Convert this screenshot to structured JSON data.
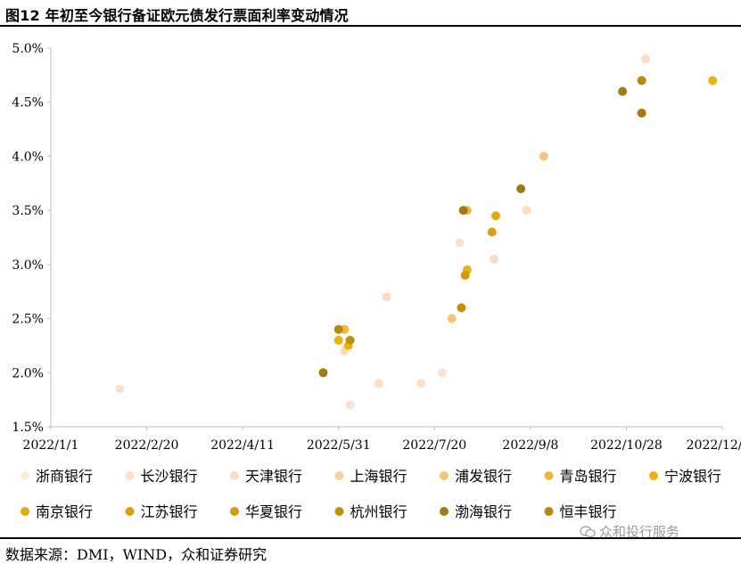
{
  "header": {
    "title": "图12 年初至今银行备证欧元债发行票面利率变动情况"
  },
  "footer": {
    "source": "数据来源：DMI，WIND，众和证券研究",
    "watermark": "众和投行服务"
  },
  "chart_data": {
    "type": "scatter",
    "title": "图12 年初至今银行备证欧元债发行票面利率变动情况",
    "xlabel": "",
    "ylabel": "",
    "xlim": [
      "2022-01-01",
      "2022-12-17"
    ],
    "ylim": [
      1.5,
      5.0
    ],
    "x_tick_labels": [
      "2022/1/1",
      "2022/2/20",
      "2022/4/11",
      "2022/5/31",
      "2022/7/20",
      "2022/9/8",
      "2022/10/28",
      "2022/12/17"
    ],
    "y_tick_labels": [
      "1.5%",
      "2.0%",
      "2.5%",
      "3.0%",
      "3.5%",
      "4.0%",
      "4.5%",
      "5.0%"
    ],
    "grid": false,
    "legend_position": "bottom",
    "series": [
      {
        "name": "浙商银行",
        "color": "#FCEBD8",
        "points": []
      },
      {
        "name": "长沙银行",
        "color": "#FCE0CA",
        "points": [
          {
            "x": "2022-02-06",
            "y": 1.85
          },
          {
            "x": "2022-06-06",
            "y": 1.7
          },
          {
            "x": "2022-06-21",
            "y": 1.9
          },
          {
            "x": "2022-07-13",
            "y": 1.9
          },
          {
            "x": "2022-07-24",
            "y": 2.0
          },
          {
            "x": "2022-08-02",
            "y": 3.2
          }
        ]
      },
      {
        "name": "天津银行",
        "color": "#FBDCC3",
        "points": [
          {
            "x": "2022-06-03",
            "y": 2.2
          },
          {
            "x": "2022-06-25",
            "y": 2.7
          },
          {
            "x": "2022-08-20",
            "y": 3.05
          },
          {
            "x": "2022-09-06",
            "y": 3.5
          },
          {
            "x": "2022-11-07",
            "y": 4.9
          }
        ]
      },
      {
        "name": "上海银行",
        "color": "#F8D09A",
        "points": []
      },
      {
        "name": "浦发银行",
        "color": "#F6C47A",
        "points": [
          {
            "x": "2022-07-29",
            "y": 2.5
          },
          {
            "x": "2022-09-15",
            "y": 4.0
          }
        ]
      },
      {
        "name": "青岛银行",
        "color": "#F3B63E",
        "points": [
          {
            "x": "2022-06-03",
            "y": 2.4
          },
          {
            "x": "2022-08-06",
            "y": 3.5
          }
        ]
      },
      {
        "name": "宁波银行",
        "color": "#EFB10E",
        "points": [
          {
            "x": "2022-05-31",
            "y": 2.3
          },
          {
            "x": "2022-06-05",
            "y": 2.25
          },
          {
            "x": "2022-08-06",
            "y": 2.95
          },
          {
            "x": "2022-12-12",
            "y": 4.7
          }
        ]
      },
      {
        "name": "南京银行",
        "color": "#E7A80A",
        "points": [
          {
            "x": "2022-08-21",
            "y": 3.45
          }
        ]
      },
      {
        "name": "江苏银行",
        "color": "#DBA00A",
        "points": [
          {
            "x": "2022-08-19",
            "y": 3.3
          }
        ]
      },
      {
        "name": "华夏银行",
        "color": "#D49A08",
        "points": [
          {
            "x": "2022-08-05",
            "y": 2.9
          }
        ]
      },
      {
        "name": "杭州银行",
        "color": "#C38F06",
        "points": [
          {
            "x": "2022-06-06",
            "y": 2.3
          },
          {
            "x": "2022-08-03",
            "y": 2.6
          }
        ]
      },
      {
        "name": "渤海银行",
        "color": "#A27A10",
        "points": [
          {
            "x": "2022-05-23",
            "y": 2.0
          },
          {
            "x": "2022-08-04",
            "y": 3.5
          },
          {
            "x": "2022-09-03",
            "y": 3.7
          },
          {
            "x": "2022-10-26",
            "y": 4.6
          },
          {
            "x": "2022-11-05",
            "y": 4.4
          }
        ]
      },
      {
        "name": "恒丰银行",
        "color": "#B8880A",
        "points": [
          {
            "x": "2022-05-31",
            "y": 2.4
          },
          {
            "x": "2022-11-05",
            "y": 4.7
          }
        ]
      }
    ]
  }
}
